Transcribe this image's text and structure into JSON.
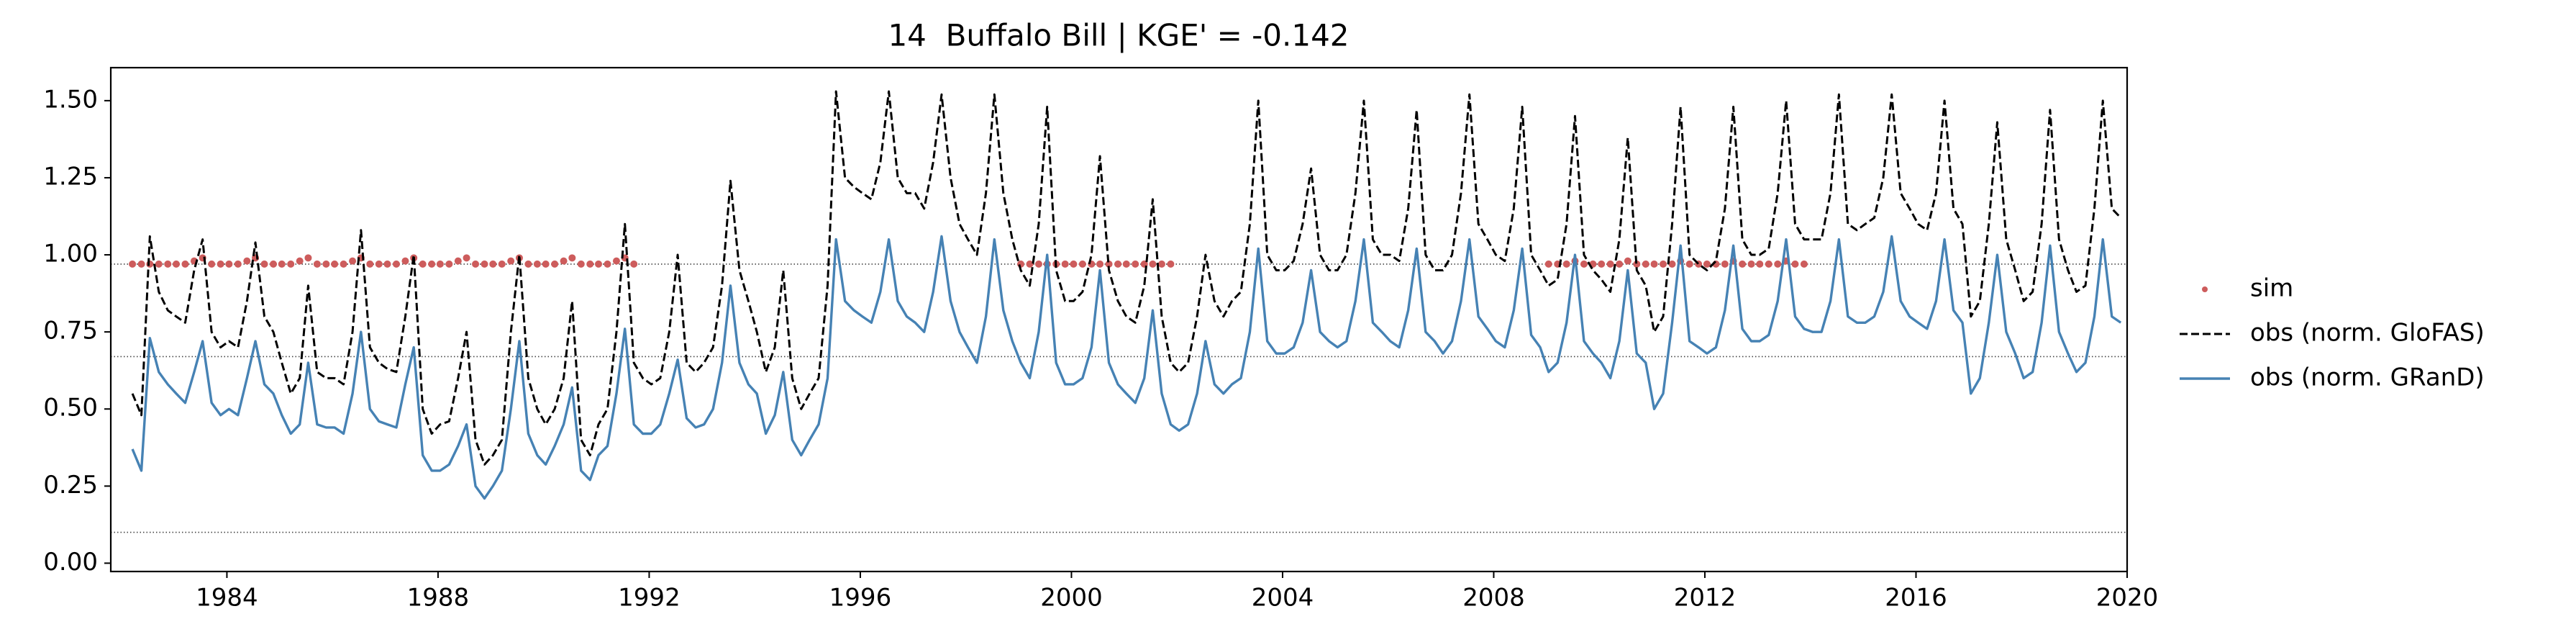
{
  "chart_data": {
    "type": "line",
    "title": "14  Buffalo Bill | KGE' = -0.142",
    "x": [
      1982.21,
      1982.38,
      1982.54,
      1982.71,
      1982.88,
      1983.04,
      1983.21,
      1983.38,
      1983.54,
      1983.71,
      1983.88,
      1984.04,
      1984.21,
      1984.38,
      1984.54,
      1984.71,
      1984.88,
      1985.04,
      1985.21,
      1985.38,
      1985.54,
      1985.71,
      1985.88,
      1986.04,
      1986.21,
      1986.38,
      1986.54,
      1986.71,
      1986.88,
      1987.04,
      1987.21,
      1987.38,
      1987.54,
      1987.71,
      1987.88,
      1988.04,
      1988.21,
      1988.38,
      1988.54,
      1988.71,
      1988.88,
      1989.04,
      1989.21,
      1989.38,
      1989.54,
      1989.71,
      1989.88,
      1990.04,
      1990.21,
      1990.38,
      1990.54,
      1990.71,
      1990.88,
      1991.04,
      1991.21,
      1991.38,
      1991.54,
      1991.71,
      1991.88,
      1992.04,
      1992.21,
      1992.38,
      1992.54,
      1992.71,
      1992.88,
      1993.04,
      1993.21,
      1993.38,
      1993.54,
      1993.71,
      1993.88,
      1994.04,
      1994.21,
      1994.38,
      1994.54,
      1994.71,
      1994.88,
      1995.04,
      1995.21,
      1995.38,
      1995.54,
      1995.71,
      1995.88,
      1996.04,
      1996.21,
      1996.38,
      1996.54,
      1996.71,
      1996.88,
      1997.04,
      1997.21,
      1997.38,
      1997.54,
      1997.71,
      1997.88,
      1998.04,
      1998.21,
      1998.38,
      1998.54,
      1998.71,
      1998.88,
      1999.04,
      1999.21,
      1999.38,
      1999.54,
      1999.71,
      1999.88,
      2000.04,
      2000.21,
      2000.38,
      2000.54,
      2000.71,
      2000.88,
      2001.04,
      2001.21,
      2001.38,
      2001.54,
      2001.71,
      2001.88,
      2002.04,
      2002.21,
      2002.38,
      2002.54,
      2002.71,
      2002.88,
      2003.04,
      2003.21,
      2003.38,
      2003.54,
      2003.71,
      2003.88,
      2004.04,
      2004.21,
      2004.38,
      2004.54,
      2004.71,
      2004.88,
      2005.04,
      2005.21,
      2005.38,
      2005.54,
      2005.71,
      2005.88,
      2006.04,
      2006.21,
      2006.38,
      2006.54,
      2006.71,
      2006.88,
      2007.04,
      2007.21,
      2007.38,
      2007.54,
      2007.71,
      2007.88,
      2008.04,
      2008.21,
      2008.38,
      2008.54,
      2008.71,
      2008.88,
      2009.04,
      2009.21,
      2009.38,
      2009.54,
      2009.71,
      2009.88,
      2010.04,
      2010.21,
      2010.38,
      2010.54,
      2010.71,
      2010.88,
      2011.04,
      2011.21,
      2011.38,
      2011.54,
      2011.71,
      2011.88,
      2012.04,
      2012.21,
      2012.38,
      2012.54,
      2012.71,
      2012.88,
      2013.04,
      2013.21,
      2013.38,
      2013.54,
      2013.71,
      2013.88,
      2014.04,
      2014.21,
      2014.38,
      2014.54,
      2014.71,
      2014.88,
      2015.04,
      2015.21,
      2015.38,
      2015.54,
      2015.71,
      2015.88,
      2016.04,
      2016.21,
      2016.38,
      2016.54,
      2016.71,
      2016.88,
      2017.04,
      2017.21,
      2017.38,
      2017.54,
      2017.71,
      2017.88,
      2018.04,
      2018.21,
      2018.38,
      2018.54,
      2018.71,
      2018.88,
      2019.04,
      2019.21,
      2019.38,
      2019.54,
      2019.71,
      2019.88
    ],
    "series": [
      {
        "name": "sim",
        "kind": "scatter",
        "color": "#cd5c5c",
        "values": [
          0.97,
          0.97,
          0.97,
          0.97,
          0.97,
          0.97,
          0.97,
          0.98,
          0.99,
          0.97,
          0.97,
          0.97,
          0.97,
          0.98,
          0.99,
          0.97,
          0.97,
          0.97,
          0.97,
          0.98,
          0.99,
          0.97,
          0.97,
          0.97,
          0.97,
          0.98,
          0.99,
          0.97,
          0.97,
          0.97,
          0.97,
          0.98,
          0.99,
          0.97,
          0.97,
          0.97,
          0.97,
          0.98,
          0.99,
          0.97,
          0.97,
          0.97,
          0.97,
          0.98,
          0.99,
          0.97,
          0.97,
          0.97,
          0.97,
          0.98,
          0.99,
          0.97,
          0.97,
          0.97,
          0.97,
          0.98,
          0.99,
          0.97,
          null,
          null,
          null,
          null,
          null,
          null,
          null,
          null,
          null,
          null,
          null,
          null,
          null,
          null,
          null,
          null,
          null,
          null,
          null,
          null,
          null,
          null,
          null,
          null,
          null,
          null,
          null,
          null,
          null,
          null,
          null,
          null,
          null,
          null,
          null,
          null,
          null,
          null,
          null,
          null,
          null,
          null,
          null,
          0.97,
          0.97,
          0.97,
          0.97,
          0.97,
          0.97,
          0.97,
          0.97,
          0.97,
          0.97,
          0.97,
          0.97,
          0.97,
          0.97,
          0.97,
          0.97,
          0.97,
          0.97,
          null,
          null,
          null,
          null,
          null,
          null,
          null,
          null,
          null,
          null,
          null,
          null,
          null,
          null,
          null,
          null,
          null,
          null,
          null,
          null,
          null,
          null,
          null,
          null,
          null,
          null,
          null,
          null,
          null,
          null,
          null,
          null,
          null,
          null,
          null,
          null,
          null,
          null,
          null,
          null,
          null,
          null,
          0.97,
          0.97,
          0.97,
          0.98,
          0.97,
          0.97,
          0.97,
          0.97,
          0.97,
          0.98,
          0.97,
          0.97,
          0.97,
          0.97,
          0.97,
          0.98,
          0.97,
          0.97,
          0.97,
          0.97,
          0.97,
          0.98,
          0.97,
          0.97,
          0.97,
          0.97,
          0.97,
          0.98,
          0.97,
          0.97,
          null,
          null,
          null,
          null,
          null,
          null,
          null,
          null,
          null,
          null,
          null,
          null,
          null,
          null,
          null,
          null,
          null,
          null,
          null,
          null,
          null,
          null,
          null,
          null,
          null,
          null,
          null,
          null,
          null,
          null,
          null,
          null,
          null,
          null,
          null,
          null
        ]
      },
      {
        "name": "obs (norm. GloFAS)",
        "kind": "line",
        "linestyle": "dashed",
        "color": "#000000",
        "values": [
          0.55,
          0.48,
          1.06,
          0.88,
          0.82,
          0.8,
          0.78,
          0.95,
          1.05,
          0.75,
          0.7,
          0.72,
          0.7,
          0.85,
          1.04,
          0.8,
          0.75,
          0.65,
          0.55,
          0.6,
          0.9,
          0.62,
          0.6,
          0.6,
          0.58,
          0.75,
          1.08,
          0.7,
          0.65,
          0.63,
          0.62,
          0.8,
          1.0,
          0.5,
          0.42,
          0.45,
          0.46,
          0.6,
          0.75,
          0.4,
          0.32,
          0.35,
          0.4,
          0.75,
          1.0,
          0.6,
          0.5,
          0.45,
          0.5,
          0.6,
          0.85,
          0.4,
          0.35,
          0.45,
          0.5,
          0.75,
          1.1,
          0.65,
          0.6,
          0.58,
          0.6,
          0.75,
          1.0,
          0.65,
          0.62,
          0.65,
          0.7,
          0.9,
          1.24,
          0.95,
          0.85,
          0.75,
          0.62,
          0.7,
          0.95,
          0.6,
          0.5,
          0.55,
          0.6,
          0.9,
          1.53,
          1.25,
          1.22,
          1.2,
          1.18,
          1.3,
          1.53,
          1.25,
          1.2,
          1.2,
          1.15,
          1.3,
          1.52,
          1.25,
          1.1,
          1.05,
          1.0,
          1.2,
          1.52,
          1.2,
          1.05,
          0.95,
          0.9,
          1.1,
          1.48,
          0.95,
          0.85,
          0.85,
          0.88,
          1.0,
          1.32,
          0.95,
          0.85,
          0.8,
          0.78,
          0.9,
          1.18,
          0.8,
          0.65,
          0.62,
          0.65,
          0.8,
          1.0,
          0.85,
          0.8,
          0.85,
          0.88,
          1.1,
          1.5,
          1.0,
          0.95,
          0.95,
          0.98,
          1.1,
          1.28,
          1.0,
          0.95,
          0.95,
          1.0,
          1.2,
          1.5,
          1.05,
          1.0,
          1.0,
          0.98,
          1.15,
          1.47,
          1.0,
          0.95,
          0.95,
          1.0,
          1.2,
          1.52,
          1.1,
          1.05,
          1.0,
          0.98,
          1.15,
          1.48,
          1.0,
          0.95,
          0.9,
          0.92,
          1.1,
          1.45,
          1.0,
          0.95,
          0.92,
          0.88,
          1.05,
          1.38,
          0.95,
          0.9,
          0.75,
          0.8,
          1.1,
          1.48,
          1.0,
          0.97,
          0.95,
          0.98,
          1.15,
          1.48,
          1.05,
          1.0,
          1.0,
          1.02,
          1.2,
          1.5,
          1.1,
          1.05,
          1.05,
          1.05,
          1.2,
          1.52,
          1.1,
          1.08,
          1.1,
          1.12,
          1.25,
          1.52,
          1.2,
          1.15,
          1.1,
          1.08,
          1.2,
          1.5,
          1.15,
          1.1,
          0.8,
          0.85,
          1.1,
          1.43,
          1.05,
          0.95,
          0.85,
          0.88,
          1.1,
          1.47,
          1.05,
          0.95,
          0.88,
          0.9,
          1.15,
          1.5,
          1.15,
          1.12
        ]
      },
      {
        "name": "obs (norm. GRanD)",
        "kind": "line",
        "linestyle": "solid",
        "color": "#4682b4",
        "values": [
          0.37,
          0.3,
          0.73,
          0.62,
          0.58,
          0.55,
          0.52,
          0.62,
          0.72,
          0.52,
          0.48,
          0.5,
          0.48,
          0.6,
          0.72,
          0.58,
          0.55,
          0.48,
          0.42,
          0.45,
          0.65,
          0.45,
          0.44,
          0.44,
          0.42,
          0.55,
          0.75,
          0.5,
          0.46,
          0.45,
          0.44,
          0.58,
          0.7,
          0.35,
          0.3,
          0.3,
          0.32,
          0.38,
          0.45,
          0.25,
          0.21,
          0.25,
          0.3,
          0.5,
          0.72,
          0.42,
          0.35,
          0.32,
          0.38,
          0.45,
          0.57,
          0.3,
          0.27,
          0.35,
          0.38,
          0.55,
          0.76,
          0.45,
          0.42,
          0.42,
          0.45,
          0.55,
          0.66,
          0.47,
          0.44,
          0.45,
          0.5,
          0.65,
          0.9,
          0.65,
          0.58,
          0.55,
          0.42,
          0.48,
          0.62,
          0.4,
          0.35,
          0.4,
          0.45,
          0.6,
          1.05,
          0.85,
          0.82,
          0.8,
          0.78,
          0.88,
          1.05,
          0.85,
          0.8,
          0.78,
          0.75,
          0.88,
          1.06,
          0.85,
          0.75,
          0.7,
          0.65,
          0.8,
          1.05,
          0.82,
          0.72,
          0.65,
          0.6,
          0.75,
          1.0,
          0.65,
          0.58,
          0.58,
          0.6,
          0.7,
          0.95,
          0.65,
          0.58,
          0.55,
          0.52,
          0.6,
          0.82,
          0.55,
          0.45,
          0.43,
          0.45,
          0.55,
          0.72,
          0.58,
          0.55,
          0.58,
          0.6,
          0.75,
          1.02,
          0.72,
          0.68,
          0.68,
          0.7,
          0.78,
          0.95,
          0.75,
          0.72,
          0.7,
          0.72,
          0.85,
          1.05,
          0.78,
          0.75,
          0.72,
          0.7,
          0.82,
          1.02,
          0.75,
          0.72,
          0.68,
          0.72,
          0.85,
          1.05,
          0.8,
          0.76,
          0.72,
          0.7,
          0.82,
          1.02,
          0.74,
          0.7,
          0.62,
          0.65,
          0.78,
          1.0,
          0.72,
          0.68,
          0.65,
          0.6,
          0.72,
          0.95,
          0.68,
          0.65,
          0.5,
          0.55,
          0.78,
          1.03,
          0.72,
          0.7,
          0.68,
          0.7,
          0.82,
          1.03,
          0.76,
          0.72,
          0.72,
          0.74,
          0.85,
          1.05,
          0.8,
          0.76,
          0.75,
          0.75,
          0.85,
          1.05,
          0.8,
          0.78,
          0.78,
          0.8,
          0.88,
          1.06,
          0.85,
          0.8,
          0.78,
          0.76,
          0.85,
          1.05,
          0.82,
          0.78,
          0.55,
          0.6,
          0.78,
          1.0,
          0.75,
          0.68,
          0.6,
          0.62,
          0.78,
          1.03,
          0.75,
          0.68,
          0.62,
          0.65,
          0.8,
          1.05,
          0.8,
          0.78
        ]
      }
    ],
    "hlines": [
      0.97,
      0.67,
      0.1
    ],
    "xlim": [
      1981.8,
      2020
    ],
    "xticks": [
      1984,
      1988,
      1992,
      1996,
      2000,
      2004,
      2008,
      2012,
      2016,
      2020
    ],
    "ylim": [
      -0.027,
      1.607
    ],
    "yticks": [
      {
        "value": 0,
        "label": "0.00"
      },
      0.25,
      {
        "value": 0.5,
        "label": "0.50"
      },
      0.75,
      {
        "value": 1,
        "label": "1.00"
      },
      1.25,
      {
        "value": 1.5,
        "label": "1.50"
      }
    ],
    "legend": "right"
  }
}
